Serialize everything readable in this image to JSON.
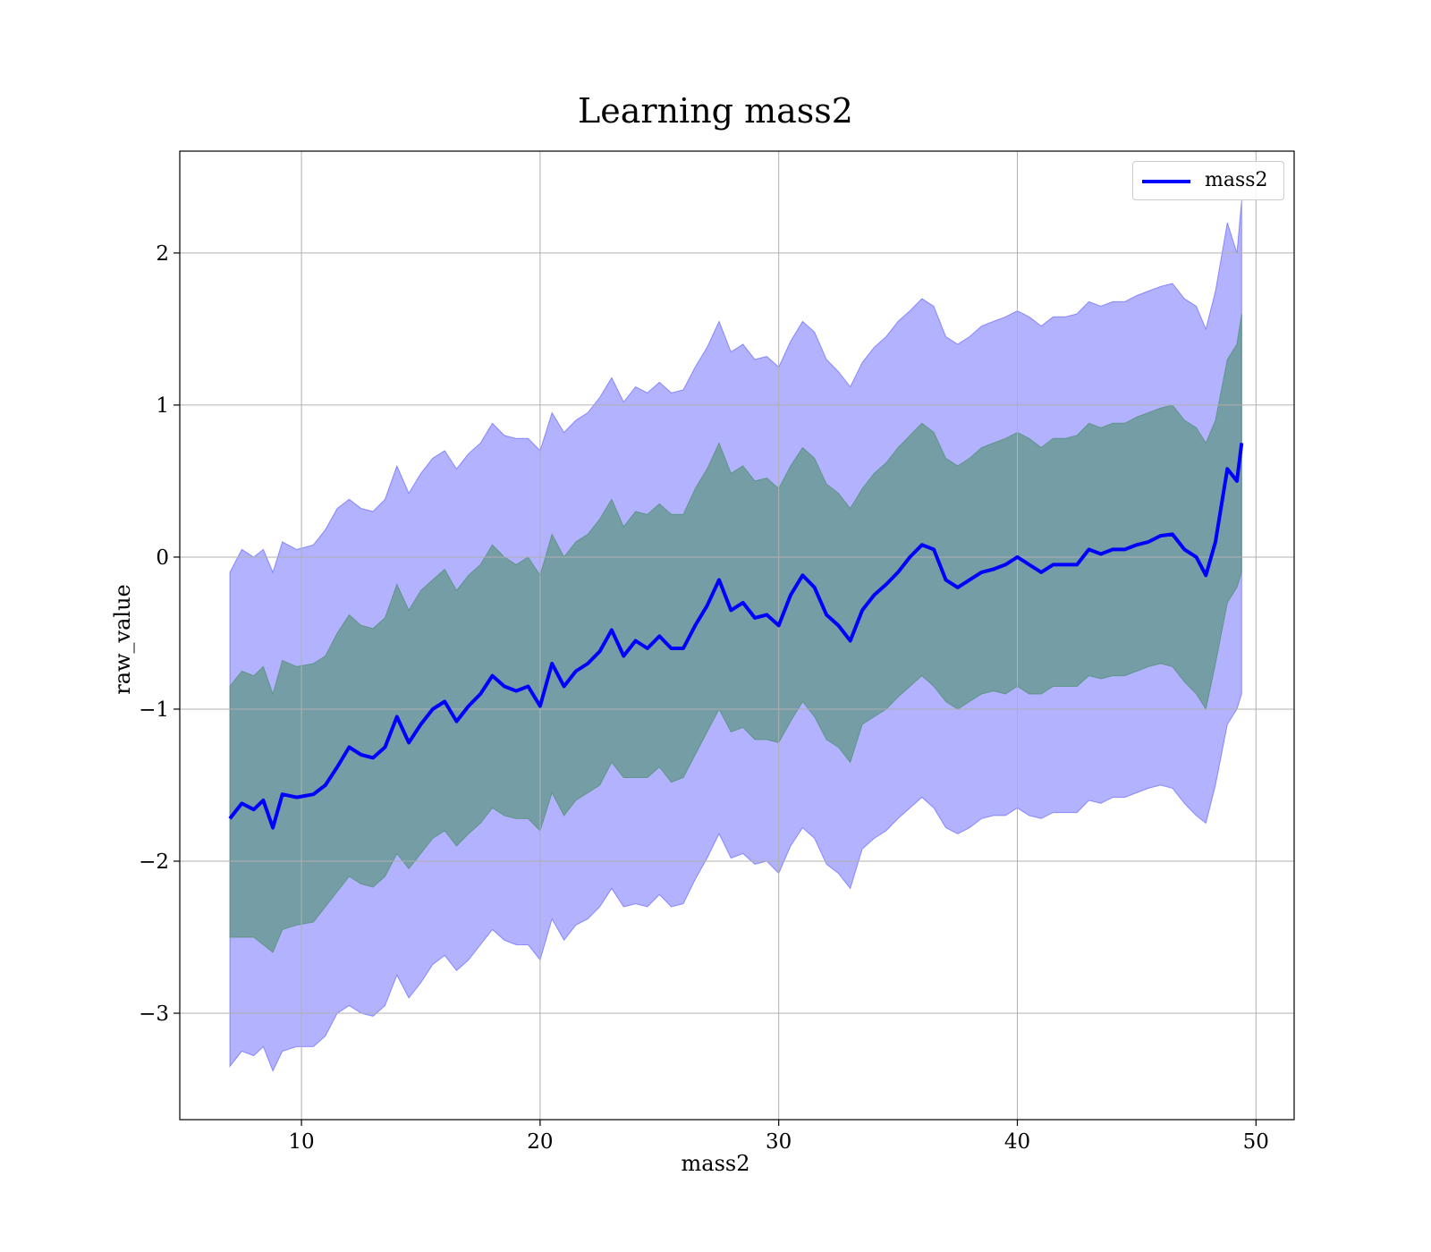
{
  "chart_data": {
    "type": "line",
    "title": "Learning mass2",
    "xlabel": "mass2",
    "ylabel": "raw_value",
    "xlim": [
      4.9,
      51.6
    ],
    "ylim": [
      -3.7,
      2.67
    ],
    "xticks": [
      10,
      20,
      30,
      40,
      50
    ],
    "xtick_labels": [
      "10",
      "20",
      "30",
      "40",
      "50"
    ],
    "yticks": [
      -3,
      -2,
      -1,
      0,
      1,
      2
    ],
    "ytick_labels": [
      "−3",
      "−2",
      "−1",
      "0",
      "1",
      "2"
    ],
    "grid": true,
    "legend_position": "top-right",
    "series": [
      {
        "name": "mass2",
        "color": "#0000ff",
        "x": [
          7.0,
          7.5,
          8.0,
          8.4,
          8.8,
          9.2,
          9.8,
          10.5,
          11.0,
          11.5,
          12.0,
          12.5,
          13.0,
          13.5,
          14.0,
          14.5,
          15.0,
          15.5,
          16.0,
          16.5,
          17.0,
          17.5,
          18.0,
          18.5,
          19.0,
          19.5,
          20.0,
          20.5,
          21.0,
          21.5,
          22.0,
          22.5,
          23.0,
          23.5,
          24.0,
          24.5,
          25.0,
          25.5,
          26.0,
          26.5,
          27.0,
          27.5,
          28.0,
          28.5,
          29.0,
          29.5,
          30.0,
          30.5,
          31.0,
          31.5,
          32.0,
          32.5,
          33.0,
          33.5,
          34.0,
          34.5,
          35.0,
          35.5,
          36.0,
          36.5,
          37.0,
          37.5,
          38.0,
          38.5,
          39.0,
          39.5,
          40.0,
          40.5,
          41.0,
          41.5,
          42.0,
          42.5,
          43.0,
          43.5,
          44.0,
          44.5,
          45.0,
          45.5,
          46.0,
          46.5,
          47.0,
          47.5,
          47.9,
          48.3,
          48.8,
          49.2,
          49.4
        ],
        "mean": [
          -1.72,
          -1.62,
          -1.66,
          -1.6,
          -1.78,
          -1.56,
          -1.58,
          -1.56,
          -1.5,
          -1.38,
          -1.25,
          -1.3,
          -1.32,
          -1.25,
          -1.05,
          -1.22,
          -1.1,
          -1.0,
          -0.95,
          -1.08,
          -0.98,
          -0.9,
          -0.78,
          -0.85,
          -0.88,
          -0.85,
          -0.98,
          -0.7,
          -0.85,
          -0.75,
          -0.7,
          -0.62,
          -0.48,
          -0.65,
          -0.55,
          -0.6,
          -0.52,
          -0.6,
          -0.6,
          -0.45,
          -0.32,
          -0.15,
          -0.35,
          -0.3,
          -0.4,
          -0.38,
          -0.45,
          -0.25,
          -0.12,
          -0.2,
          -0.38,
          -0.45,
          -0.55,
          -0.35,
          -0.25,
          -0.18,
          -0.1,
          0.0,
          0.08,
          0.05,
          -0.15,
          -0.2,
          -0.15,
          -0.1,
          -0.08,
          -0.05,
          0.0,
          -0.05,
          -0.1,
          -0.05,
          -0.05,
          -0.05,
          0.05,
          0.02,
          0.05,
          0.05,
          0.08,
          0.1,
          0.14,
          0.15,
          0.05,
          0.0,
          -0.12,
          0.1,
          0.58,
          0.5,
          0.75
        ],
        "inner_band": {
          "color": "#4f8f6f",
          "lower": [
            -2.5,
            -2.5,
            -2.5,
            -2.55,
            -2.6,
            -2.45,
            -2.42,
            -2.4,
            -2.3,
            -2.2,
            -2.1,
            -2.15,
            -2.17,
            -2.1,
            -1.95,
            -2.05,
            -1.95,
            -1.85,
            -1.8,
            -1.9,
            -1.82,
            -1.75,
            -1.65,
            -1.7,
            -1.72,
            -1.72,
            -1.8,
            -1.55,
            -1.7,
            -1.6,
            -1.55,
            -1.5,
            -1.35,
            -1.45,
            -1.45,
            -1.45,
            -1.38,
            -1.48,
            -1.45,
            -1.3,
            -1.15,
            -1.0,
            -1.15,
            -1.12,
            -1.2,
            -1.2,
            -1.22,
            -1.08,
            -0.95,
            -1.05,
            -1.2,
            -1.25,
            -1.35,
            -1.1,
            -1.05,
            -1.0,
            -0.92,
            -0.85,
            -0.78,
            -0.85,
            -0.95,
            -1.0,
            -0.95,
            -0.9,
            -0.88,
            -0.9,
            -0.85,
            -0.9,
            -0.9,
            -0.85,
            -0.85,
            -0.85,
            -0.78,
            -0.8,
            -0.78,
            -0.78,
            -0.75,
            -0.72,
            -0.7,
            -0.72,
            -0.82,
            -0.9,
            -1.0,
            -0.7,
            -0.3,
            -0.2,
            -0.1
          ],
          "upper": [
            -0.85,
            -0.75,
            -0.78,
            -0.72,
            -0.9,
            -0.68,
            -0.72,
            -0.7,
            -0.65,
            -0.5,
            -0.38,
            -0.45,
            -0.47,
            -0.4,
            -0.18,
            -0.35,
            -0.22,
            -0.15,
            -0.08,
            -0.22,
            -0.12,
            -0.05,
            0.08,
            0.0,
            -0.05,
            0.0,
            -0.12,
            0.15,
            0.0,
            0.1,
            0.15,
            0.25,
            0.38,
            0.2,
            0.3,
            0.28,
            0.35,
            0.28,
            0.28,
            0.45,
            0.58,
            0.75,
            0.55,
            0.6,
            0.5,
            0.52,
            0.45,
            0.6,
            0.72,
            0.65,
            0.48,
            0.42,
            0.32,
            0.45,
            0.55,
            0.62,
            0.72,
            0.8,
            0.88,
            0.82,
            0.65,
            0.6,
            0.65,
            0.72,
            0.75,
            0.78,
            0.82,
            0.78,
            0.72,
            0.78,
            0.78,
            0.8,
            0.88,
            0.85,
            0.88,
            0.88,
            0.92,
            0.95,
            0.98,
            1.0,
            0.9,
            0.85,
            0.75,
            0.9,
            1.3,
            1.4,
            1.6
          ]
        },
        "outer_band": {
          "color": "#0000ff",
          "lower": [
            -3.35,
            -3.25,
            -3.28,
            -3.22,
            -3.38,
            -3.25,
            -3.22,
            -3.22,
            -3.15,
            -3.0,
            -2.95,
            -3.0,
            -3.02,
            -2.95,
            -2.75,
            -2.9,
            -2.8,
            -2.68,
            -2.62,
            -2.72,
            -2.65,
            -2.55,
            -2.45,
            -2.52,
            -2.55,
            -2.55,
            -2.65,
            -2.38,
            -2.52,
            -2.42,
            -2.38,
            -2.3,
            -2.18,
            -2.3,
            -2.28,
            -2.3,
            -2.22,
            -2.3,
            -2.28,
            -2.12,
            -1.98,
            -1.82,
            -1.98,
            -1.95,
            -2.02,
            -2.0,
            -2.08,
            -1.9,
            -1.78,
            -1.85,
            -2.02,
            -2.08,
            -2.18,
            -1.92,
            -1.85,
            -1.8,
            -1.72,
            -1.65,
            -1.58,
            -1.65,
            -1.78,
            -1.82,
            -1.78,
            -1.72,
            -1.7,
            -1.7,
            -1.65,
            -1.7,
            -1.72,
            -1.68,
            -1.68,
            -1.68,
            -1.6,
            -1.62,
            -1.58,
            -1.58,
            -1.55,
            -1.52,
            -1.5,
            -1.52,
            -1.62,
            -1.7,
            -1.75,
            -1.5,
            -1.1,
            -1.0,
            -0.9
          ],
          "upper": [
            -0.1,
            0.05,
            0.0,
            0.05,
            -0.1,
            0.1,
            0.05,
            0.08,
            0.18,
            0.32,
            0.38,
            0.32,
            0.3,
            0.38,
            0.6,
            0.42,
            0.55,
            0.65,
            0.7,
            0.58,
            0.68,
            0.75,
            0.88,
            0.8,
            0.78,
            0.78,
            0.7,
            0.95,
            0.82,
            0.9,
            0.95,
            1.05,
            1.18,
            1.02,
            1.12,
            1.08,
            1.15,
            1.08,
            1.1,
            1.25,
            1.38,
            1.55,
            1.35,
            1.4,
            1.3,
            1.32,
            1.25,
            1.42,
            1.55,
            1.48,
            1.3,
            1.22,
            1.12,
            1.28,
            1.38,
            1.45,
            1.55,
            1.62,
            1.7,
            1.65,
            1.45,
            1.4,
            1.45,
            1.52,
            1.55,
            1.58,
            1.62,
            1.58,
            1.52,
            1.58,
            1.58,
            1.6,
            1.68,
            1.65,
            1.68,
            1.68,
            1.72,
            1.75,
            1.78,
            1.8,
            1.7,
            1.65,
            1.5,
            1.75,
            2.2,
            2.0,
            2.35
          ]
        }
      }
    ]
  }
}
